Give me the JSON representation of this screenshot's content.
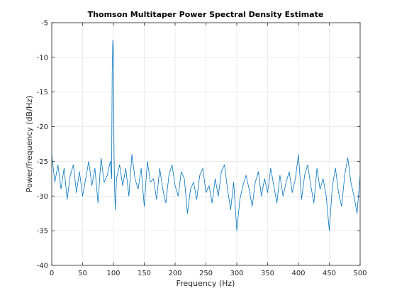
{
  "chart_data": {
    "type": "line",
    "title": "Thomson Multitaper Power Spectral Density Estimate",
    "xlabel": "Frequency (Hz)",
    "ylabel": "Power/frequency (dB/Hz)",
    "xlim": [
      0,
      500
    ],
    "ylim": [
      -40,
      -5
    ],
    "xticks": [
      0,
      50,
      100,
      150,
      200,
      250,
      300,
      350,
      400,
      450,
      500
    ],
    "yticks": [
      -40,
      -35,
      -30,
      -25,
      -20,
      -15,
      -10,
      -5
    ],
    "xtick_labels": [
      "0",
      "50",
      "100",
      "150",
      "200",
      "250",
      "300",
      "350",
      "400",
      "450",
      "500"
    ],
    "ytick_labels": [
      "-40",
      "-35",
      "-30",
      "-25",
      "-20",
      "-15",
      "-10",
      "-5"
    ],
    "grid": true,
    "legend": "none",
    "series": [
      {
        "color": "#0072bd",
        "x": [
          0,
          5,
          10,
          15,
          20,
          25,
          30,
          35,
          40,
          45,
          50,
          55,
          60,
          65,
          70,
          75,
          80,
          85,
          90,
          95,
          97,
          98,
          99,
          100,
          101,
          102,
          103,
          105,
          110,
          115,
          120,
          125,
          130,
          135,
          140,
          145,
          150,
          155,
          160,
          165,
          170,
          175,
          180,
          185,
          190,
          195,
          200,
          205,
          210,
          215,
          220,
          225,
          230,
          235,
          240,
          245,
          250,
          255,
          260,
          265,
          270,
          275,
          280,
          285,
          290,
          295,
          300,
          305,
          310,
          315,
          320,
          325,
          330,
          335,
          340,
          345,
          350,
          355,
          360,
          365,
          370,
          375,
          380,
          385,
          390,
          395,
          400,
          405,
          410,
          415,
          420,
          425,
          430,
          435,
          440,
          445,
          450,
          455,
          460,
          465,
          470,
          475,
          480,
          485,
          490,
          495,
          500
        ],
        "values": [
          -24.0,
          -28.0,
          -25.5,
          -29.0,
          -26.0,
          -30.5,
          -27.0,
          -25.5,
          -29.5,
          -26.5,
          -30.0,
          -27.5,
          -25.0,
          -28.5,
          -26.0,
          -31.0,
          -24.5,
          -28.0,
          -27.0,
          -25.0,
          -27.5,
          -12.0,
          -7.5,
          -9.0,
          -24.0,
          -29.0,
          -32.0,
          -27.5,
          -25.5,
          -28.5,
          -26.0,
          -30.0,
          -24.0,
          -27.5,
          -29.0,
          -26.0,
          -31.5,
          -25.0,
          -28.0,
          -27.5,
          -30.5,
          -26.0,
          -29.0,
          -31.0,
          -27.0,
          -25.5,
          -28.5,
          -30.0,
          -26.5,
          -27.5,
          -32.5,
          -29.0,
          -28.0,
          -30.5,
          -27.0,
          -26.0,
          -29.5,
          -28.5,
          -31.0,
          -27.5,
          -30.0,
          -26.5,
          -25.5,
          -29.0,
          -32.0,
          -28.0,
          -35.0,
          -30.5,
          -28.5,
          -27.0,
          -29.0,
          -31.5,
          -28.0,
          -26.5,
          -30.0,
          -27.5,
          -29.5,
          -26.0,
          -28.5,
          -31.0,
          -27.0,
          -30.0,
          -28.0,
          -26.5,
          -29.5,
          -27.5,
          -24.0,
          -30.5,
          -27.0,
          -25.5,
          -28.5,
          -31.0,
          -26.0,
          -29.0,
          -27.5,
          -30.0,
          -35.0,
          -28.5,
          -26.0,
          -29.5,
          -31.5,
          -27.0,
          -24.5,
          -28.0,
          -30.0,
          -32.5,
          -27.0
        ]
      }
    ]
  }
}
